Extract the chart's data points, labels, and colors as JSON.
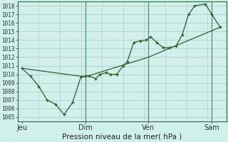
{
  "background_color": "#d0f0ec",
  "plot_bg_color": "#d0f0ec",
  "grid_h_color": "#b8ccc8",
  "grid_v_color": "#88aaaa",
  "line_color": "#2d5e2d",
  "marker_color": "#2d5e2d",
  "xlabel": "Pression niveau de la mer( hPa )",
  "ylim": [
    1004.5,
    1018.5
  ],
  "yticks": [
    1005,
    1006,
    1007,
    1008,
    1009,
    1010,
    1011,
    1012,
    1013,
    1014,
    1015,
    1016,
    1017,
    1018
  ],
  "xtick_positions": [
    0,
    3,
    6,
    9
  ],
  "xtick_labels": [
    "Jeu",
    "Dim",
    "Ven",
    "Sam"
  ],
  "series1_x": [
    0.0,
    0.4,
    0.8,
    1.2,
    1.6,
    2.0,
    2.4,
    2.8,
    3.0,
    3.2,
    3.5,
    3.7,
    4.0,
    4.2,
    4.5,
    4.8,
    5.0,
    5.3,
    5.6,
    5.9,
    6.1,
    6.4,
    6.7,
    7.0,
    7.3,
    7.6,
    7.9,
    8.2,
    8.7,
    9.0,
    9.4
  ],
  "series1_y": [
    1010.7,
    1009.8,
    1008.6,
    1007.0,
    1006.5,
    1005.3,
    1006.7,
    1009.7,
    1009.8,
    1009.8,
    1009.5,
    1010.0,
    1010.2,
    1010.0,
    1010.0,
    1011.0,
    1011.5,
    1013.7,
    1013.9,
    1014.0,
    1014.4,
    1013.7,
    1013.1,
    1013.1,
    1013.3,
    1014.6,
    1017.0,
    1018.0,
    1018.2,
    1017.0,
    1015.5
  ],
  "series2_x": [
    0.0,
    3.0,
    6.0,
    9.4
  ],
  "series2_y": [
    1010.7,
    1009.7,
    1012.0,
    1015.5
  ],
  "vline_positions": [
    3,
    6,
    9
  ],
  "xlim": [
    -0.2,
    9.7
  ]
}
